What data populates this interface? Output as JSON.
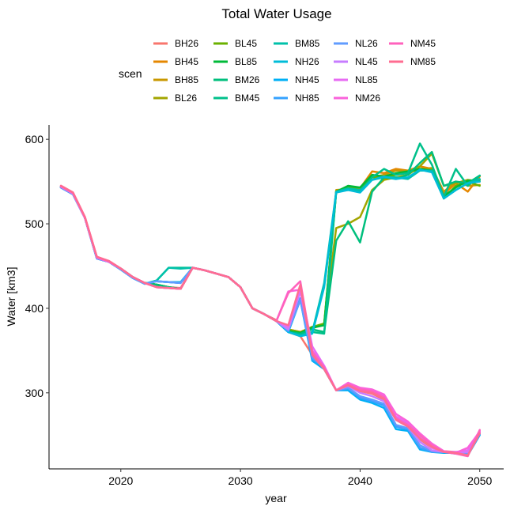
{
  "chart_data": {
    "type": "line",
    "title": "Total Water Usage",
    "xlabel": "year",
    "ylabel": "Water [km3]",
    "xlim": [
      2014,
      2052
    ],
    "ylim": [
      210,
      617
    ],
    "xticks": [
      2020,
      2030,
      2040,
      2050
    ],
    "yticks": [
      300,
      400,
      500,
      600
    ],
    "grid": false,
    "legend": {
      "title": "scen",
      "position": "top",
      "columns": 5
    },
    "x": [
      2015,
      2016,
      2017,
      2018,
      2019,
      2020,
      2021,
      2022,
      2023,
      2024,
      2025,
      2026,
      2027,
      2028,
      2029,
      2030,
      2031,
      2032,
      2033,
      2034,
      2035,
      2036,
      2037,
      2038,
      2039,
      2040,
      2041,
      2042,
      2043,
      2044,
      2045,
      2046,
      2047,
      2048,
      2049,
      2050
    ],
    "series": [
      {
        "name": "BH26",
        "color": "#F8766D",
        "values": [
          545,
          537,
          508,
          460,
          456,
          447,
          437,
          430,
          427,
          425,
          424,
          448,
          445,
          441,
          437,
          425,
          400,
          393,
          386,
          372,
          367,
          345,
          328,
          303,
          307,
          302,
          299,
          292,
          270,
          263,
          245,
          235,
          231,
          230,
          228,
          253
        ]
      },
      {
        "name": "BH45",
        "color": "#E58700",
        "values": [
          544,
          536,
          507,
          460,
          455,
          447,
          437,
          430,
          428,
          425,
          423,
          448,
          445,
          441,
          437,
          425,
          400,
          393,
          385,
          375,
          372,
          378,
          380,
          538,
          540,
          542,
          562,
          560,
          565,
          563,
          568,
          565,
          535,
          548,
          538,
          556
        ]
      },
      {
        "name": "BH85",
        "color": "#C99800",
        "values": [
          544,
          536,
          507,
          460,
          455,
          447,
          437,
          430,
          428,
          425,
          423,
          448,
          445,
          441,
          437,
          425,
          400,
          393,
          385,
          375,
          370,
          378,
          380,
          540,
          541,
          543,
          555,
          558,
          563,
          563,
          565,
          566,
          538,
          550,
          545,
          546
        ]
      },
      {
        "name": "BL26",
        "color": "#A3A500",
        "values": [
          544,
          536,
          507,
          460,
          455,
          447,
          437,
          430,
          428,
          425,
          423,
          448,
          445,
          441,
          437,
          425,
          400,
          393,
          385,
          375,
          372,
          376,
          382,
          495,
          500,
          508,
          540,
          552,
          555,
          558,
          568,
          583,
          545,
          548,
          552,
          550
        ]
      },
      {
        "name": "BL45",
        "color": "#6BB100",
        "values": [
          544,
          536,
          507,
          460,
          455,
          447,
          437,
          430,
          428,
          425,
          423,
          448,
          445,
          441,
          437,
          425,
          400,
          393,
          385,
          374,
          371,
          378,
          382,
          538,
          544,
          540,
          555,
          554,
          558,
          562,
          563,
          564,
          530,
          545,
          550,
          545
        ]
      },
      {
        "name": "BL85",
        "color": "#00BA38",
        "values": [
          544,
          536,
          507,
          460,
          455,
          447,
          437,
          430,
          428,
          425,
          423,
          448,
          445,
          441,
          437,
          425,
          400,
          393,
          385,
          373,
          371,
          377,
          380,
          538,
          545,
          543,
          558,
          556,
          560,
          562,
          565,
          563,
          533,
          543,
          551,
          552
        ]
      },
      {
        "name": "BM26",
        "color": "#00BF7D",
        "values": [
          544,
          536,
          507,
          460,
          455,
          447,
          437,
          430,
          428,
          425,
          423,
          448,
          445,
          441,
          437,
          425,
          400,
          393,
          385,
          372,
          370,
          375,
          372,
          480,
          503,
          478,
          538,
          555,
          553,
          558,
          572,
          585,
          545,
          550,
          548,
          557
        ]
      },
      {
        "name": "BM45",
        "color": "#00C08B",
        "values": [
          543,
          535,
          507,
          459,
          455,
          446,
          436,
          429,
          433,
          448,
          448,
          448,
          445,
          441,
          437,
          425,
          400,
          393,
          385,
          372,
          368,
          372,
          370,
          538,
          540,
          538,
          555,
          565,
          558,
          560,
          595,
          570,
          532,
          565,
          545,
          557
        ]
      },
      {
        "name": "BM85",
        "color": "#00C1AA",
        "values": [
          543,
          535,
          507,
          459,
          455,
          446,
          436,
          429,
          433,
          448,
          447,
          448,
          445,
          441,
          437,
          425,
          400,
          393,
          385,
          372,
          368,
          372,
          430,
          538,
          542,
          540,
          552,
          555,
          555,
          553,
          563,
          563,
          530,
          540,
          548,
          553
        ]
      },
      {
        "name": "NH26",
        "color": "#00BCD8",
        "values": [
          543,
          535,
          507,
          459,
          455,
          446,
          436,
          429,
          432,
          431,
          431,
          448,
          445,
          441,
          437,
          425,
          400,
          393,
          385,
          372,
          367,
          370,
          425,
          537,
          540,
          537,
          552,
          556,
          553,
          555,
          564,
          561,
          530,
          540,
          548,
          550
        ]
      },
      {
        "name": "NH45",
        "color": "#00B0F6",
        "values": [
          543,
          535,
          507,
          459,
          455,
          446,
          436,
          429,
          432,
          431,
          430,
          448,
          445,
          441,
          437,
          425,
          400,
          393,
          385,
          372,
          410,
          338,
          328,
          303,
          303,
          292,
          288,
          282,
          257,
          255,
          233,
          230,
          229,
          229,
          226,
          250
        ]
      },
      {
        "name": "NH85",
        "color": "#35A2FF",
        "values": [
          543,
          535,
          507,
          459,
          455,
          446,
          436,
          429,
          432,
          431,
          430,
          448,
          445,
          441,
          437,
          425,
          400,
          393,
          385,
          373,
          412,
          340,
          330,
          303,
          305,
          294,
          290,
          285,
          260,
          257,
          235,
          230,
          230,
          228,
          227,
          251
        ]
      },
      {
        "name": "NL26",
        "color": "#619CFF",
        "values": [
          543,
          535,
          507,
          459,
          455,
          446,
          436,
          429,
          432,
          431,
          430,
          448,
          445,
          441,
          437,
          425,
          400,
          393,
          385,
          374,
          410,
          342,
          330,
          303,
          306,
          296,
          292,
          287,
          262,
          258,
          238,
          231,
          230,
          229,
          228,
          252
        ]
      },
      {
        "name": "NL45",
        "color": "#C77CFF",
        "values": [
          544,
          536,
          507,
          460,
          455,
          447,
          437,
          430,
          425,
          424,
          423,
          448,
          445,
          441,
          437,
          425,
          400,
          393,
          385,
          375,
          420,
          350,
          330,
          303,
          308,
          300,
          296,
          290,
          268,
          260,
          242,
          232,
          230,
          229,
          230,
          253
        ]
      },
      {
        "name": "NL85",
        "color": "#E76BF3",
        "values": [
          544,
          536,
          507,
          460,
          455,
          447,
          437,
          430,
          425,
          424,
          423,
          448,
          445,
          441,
          437,
          425,
          400,
          393,
          385,
          378,
          425,
          355,
          332,
          303,
          310,
          305,
          302,
          296,
          272,
          264,
          248,
          235,
          230,
          230,
          232,
          255
        ]
      },
      {
        "name": "NM26",
        "color": "#FA62DB",
        "values": [
          544,
          536,
          507,
          460,
          455,
          447,
          437,
          430,
          425,
          424,
          423,
          448,
          445,
          441,
          437,
          425,
          400,
          393,
          385,
          420,
          422,
          350,
          330,
          303,
          312,
          306,
          304,
          298,
          275,
          266,
          252,
          240,
          231,
          229,
          235,
          254
        ]
      },
      {
        "name": "NM45",
        "color": "#FF62BC",
        "values": [
          545,
          537,
          508,
          461,
          456,
          447,
          437,
          430,
          425,
          424,
          423,
          448,
          445,
          441,
          437,
          425,
          400,
          393,
          385,
          418,
          432,
          348,
          330,
          303,
          310,
          304,
          302,
          295,
          270,
          262,
          250,
          238,
          230,
          228,
          225,
          256
        ]
      },
      {
        "name": "NM85",
        "color": "#FF6C91",
        "values": [
          545,
          537,
          508,
          461,
          456,
          447,
          437,
          430,
          425,
          424,
          423,
          448,
          445,
          441,
          437,
          425,
          400,
          393,
          385,
          380,
          428,
          345,
          328,
          303,
          309,
          302,
          300,
          293,
          268,
          260,
          246,
          236,
          230,
          229,
          226,
          252
        ]
      }
    ]
  }
}
